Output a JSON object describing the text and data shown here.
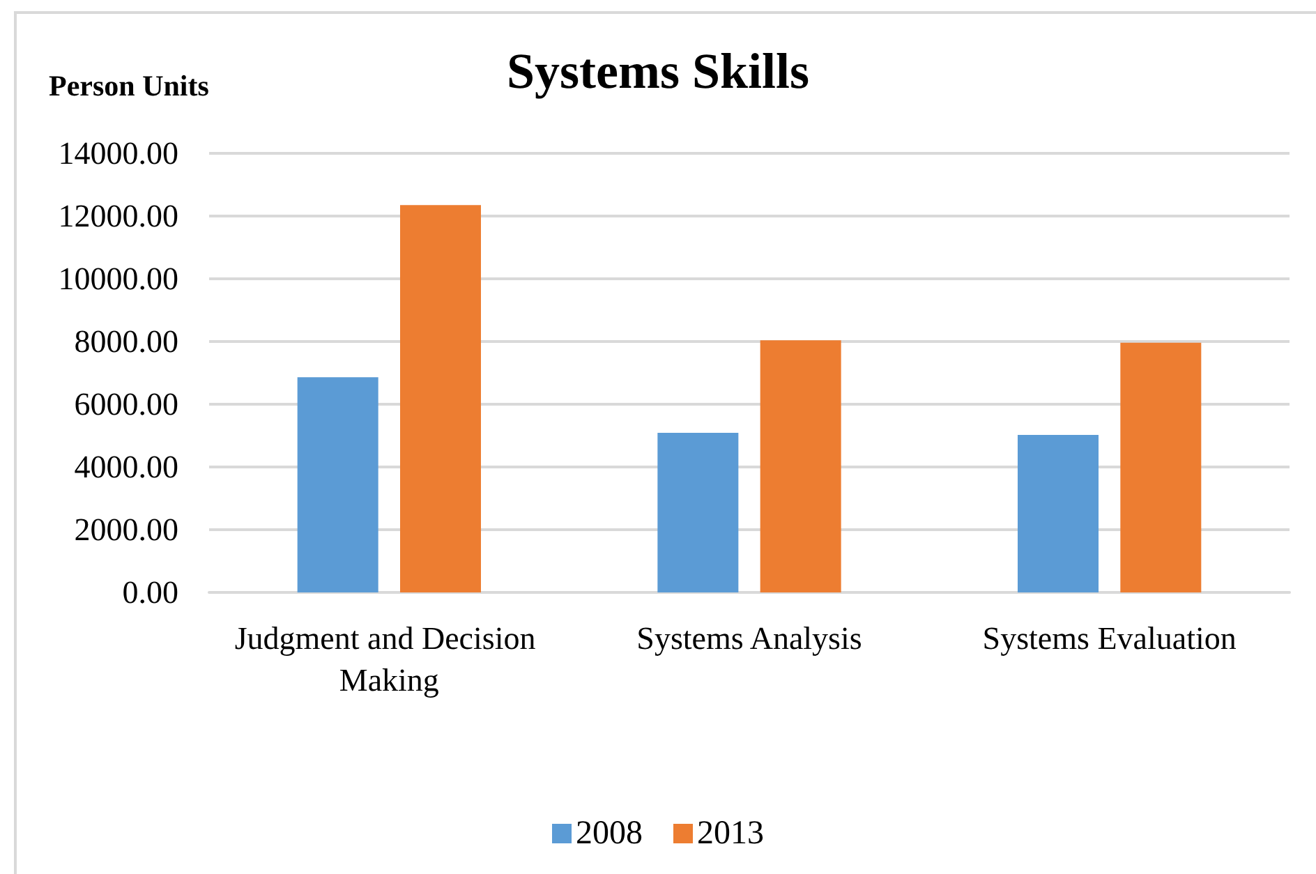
{
  "chart_data": {
    "type": "bar",
    "title": "Systems Skills",
    "ylabel": "Person Units",
    "categories": [
      "Judgment and Decision Making",
      "Systems Analysis",
      "Systems Evaluation"
    ],
    "series": [
      {
        "name": "2008",
        "color": "#5b9bd5",
        "values": [
          6860,
          5090,
          5020
        ]
      },
      {
        "name": "2013",
        "color": "#ed7d31",
        "values": [
          12350,
          8040,
          7960
        ]
      }
    ],
    "ylim": [
      0,
      14000
    ],
    "yticks": [
      {
        "value": 0,
        "label": "0.00"
      },
      {
        "value": 2000,
        "label": "2000.00"
      },
      {
        "value": 4000,
        "label": "4000.00"
      },
      {
        "value": 6000,
        "label": "6000.00"
      },
      {
        "value": 8000,
        "label": "8000.00"
      },
      {
        "value": 10000,
        "label": "10000.00"
      },
      {
        "value": 12000,
        "label": "12000.00"
      },
      {
        "value": 14000,
        "label": "14000.00"
      }
    ],
    "grid": "y",
    "legend": "bottom"
  }
}
